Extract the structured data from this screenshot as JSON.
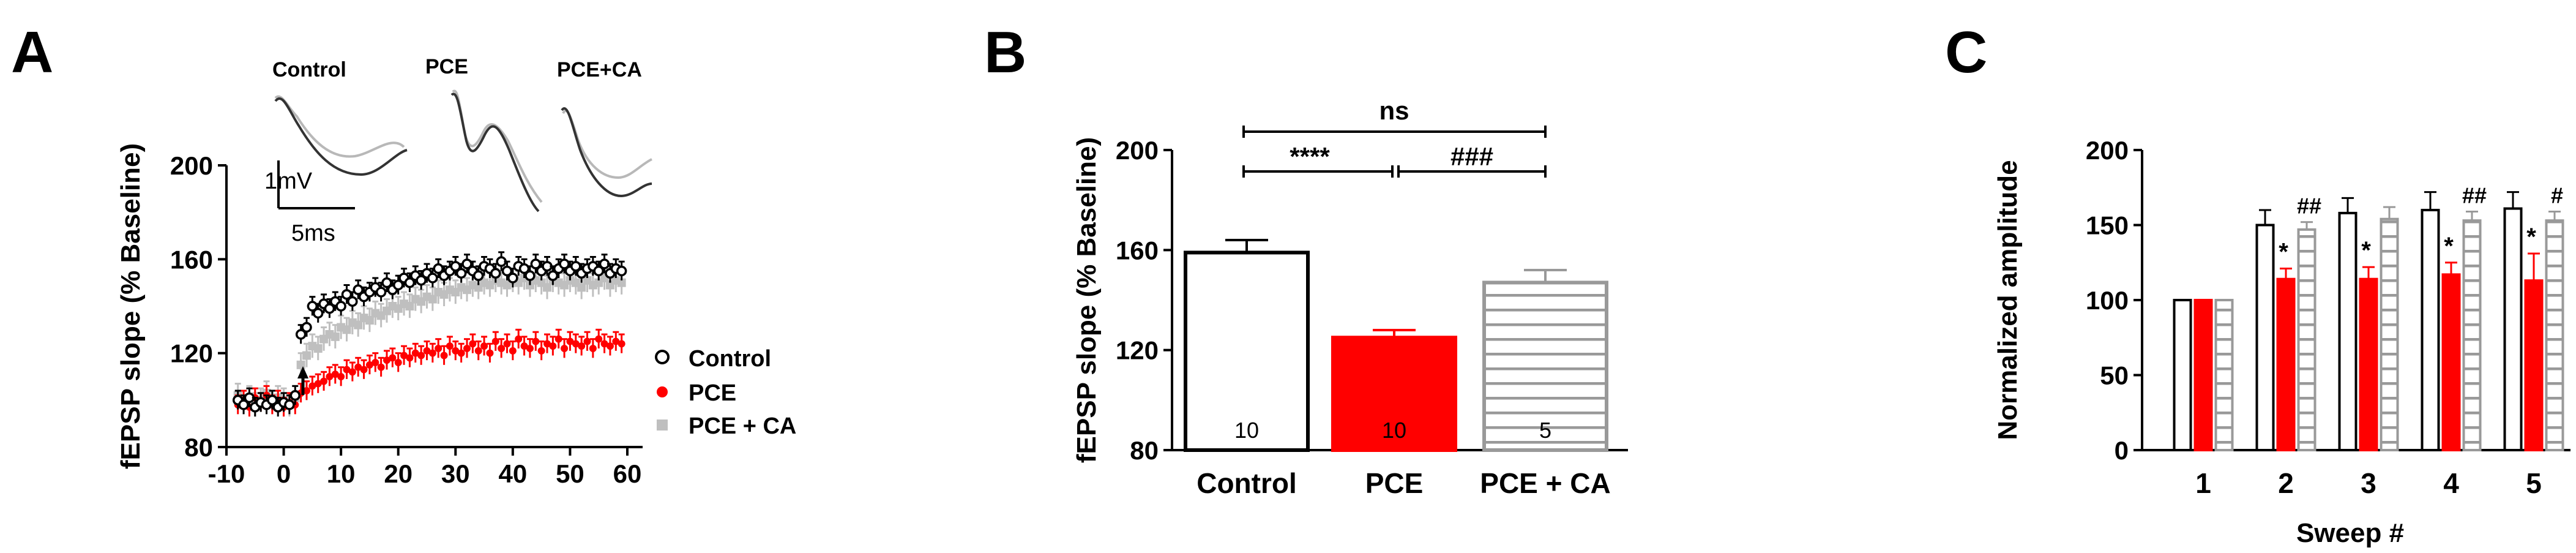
{
  "colors": {
    "control": "#000000",
    "pce": "#ff0000",
    "pce_ca": "#999999",
    "pce_ca_fill": "#bfbfbf",
    "trace_light": "#b8b8b8"
  },
  "chart_data": [
    {
      "panel_label": "A",
      "type": "scatter",
      "xlabel": "",
      "ylabel": "fEPSP slope (% Baseline)",
      "xlim": [
        -10,
        60
      ],
      "ylim": [
        80,
        200
      ],
      "x_ticks": [
        "-10",
        "0",
        "10",
        "20",
        "30",
        "40",
        "50",
        "60"
      ],
      "y_ticks": [
        "80",
        "120",
        "160",
        "200"
      ],
      "insets": {
        "labels": [
          "Control",
          "PCE",
          "PCE+CA"
        ],
        "scale_bar": {
          "voltage": "1mV",
          "time": "5ms"
        }
      },
      "legend": {
        "position": "right",
        "entries": [
          "Control",
          "PCE",
          "PCE + CA"
        ]
      },
      "grid": false,
      "series": [
        {
          "name": "Control",
          "marker": "open-circle",
          "x_start": -8,
          "x_step": 1,
          "values": [
            100,
            98,
            101,
            97,
            99,
            98,
            100,
            97,
            99,
            98,
            102,
            128,
            131,
            140,
            137,
            141,
            139,
            142,
            140,
            145,
            142,
            147,
            144,
            146,
            148,
            146,
            150,
            147,
            149,
            152,
            150,
            153,
            151,
            154,
            152,
            156,
            153,
            155,
            157,
            154,
            158,
            155,
            153,
            157,
            156,
            154,
            159,
            155,
            152,
            157,
            156,
            153,
            158,
            155,
            157,
            153,
            156,
            158,
            155,
            157,
            154,
            156,
            157,
            155,
            158,
            154,
            156,
            155
          ],
          "error": 4
        },
        {
          "name": "PCE",
          "marker": "filled-circle",
          "x_start": -8,
          "x_step": 1,
          "values": [
            98,
            100,
            97,
            101,
            99,
            102,
            98,
            100,
            97,
            99,
            98,
            103,
            104,
            106,
            107,
            108,
            110,
            111,
            110,
            113,
            112,
            114,
            113,
            115,
            116,
            114,
            117,
            118,
            116,
            119,
            118,
            120,
            119,
            121,
            120,
            122,
            119,
            123,
            121,
            120,
            122,
            124,
            121,
            123,
            120,
            125,
            122,
            124,
            121,
            126,
            123,
            122,
            125,
            121,
            124,
            123,
            126,
            122,
            125,
            124,
            123,
            125,
            122,
            126,
            124,
            123,
            125,
            124
          ],
          "error": 4
        },
        {
          "name": "PCE + CA",
          "marker": "square",
          "x_start": -8,
          "x_step": 1,
          "values": [
            102,
            99,
            101,
            98,
            100,
            103,
            99,
            101,
            100,
            98,
            101,
            115,
            119,
            123,
            122,
            126,
            128,
            127,
            131,
            130,
            133,
            132,
            135,
            134,
            137,
            136,
            138,
            140,
            139,
            141,
            140,
            143,
            142,
            144,
            143,
            146,
            145,
            147,
            146,
            148,
            147,
            149,
            148,
            150,
            149,
            151,
            150,
            149,
            151,
            150,
            152,
            149,
            151,
            150,
            148,
            151,
            150,
            149,
            151,
            150,
            148,
            151,
            149,
            150,
            152,
            149,
            151,
            150
          ],
          "error": 5
        }
      ]
    },
    {
      "panel_label": "B",
      "type": "bar",
      "xlabel": "",
      "ylabel": "fEPSP slope (% Baseline)",
      "ylim": [
        80,
        200
      ],
      "y_ticks": [
        "80",
        "120",
        "160",
        "200"
      ],
      "categories": [
        "Control",
        "PCE",
        "PCE + CA"
      ],
      "values": [
        159,
        125,
        147
      ],
      "errors": [
        5,
        3,
        5
      ],
      "n_labels": [
        "10",
        "10",
        "5"
      ],
      "significance": [
        "ns",
        "****",
        "###"
      ],
      "grid": false
    },
    {
      "panel_label": "C",
      "type": "bar",
      "xlabel": "Sweep #",
      "ylabel": "Normalized amplitude",
      "ylim": [
        0,
        200
      ],
      "y_ticks": [
        "0",
        "50",
        "100",
        "150",
        "200"
      ],
      "categories": [
        "1",
        "2",
        "3",
        "4",
        "5"
      ],
      "series": [
        {
          "values": [
            100,
            150,
            158,
            160,
            161
          ],
          "errors": [
            0,
            10,
            10,
            12,
            11
          ]
        },
        {
          "values": [
            100,
            114,
            114,
            117,
            113
          ],
          "errors": [
            0,
            7,
            8,
            8,
            18
          ]
        },
        {
          "values": [
            100,
            147,
            154,
            153,
            153
          ],
          "errors": [
            0,
            5,
            8,
            6,
            6
          ]
        }
      ],
      "markers_pce": [
        "",
        "*",
        "*",
        "*",
        "*"
      ],
      "markers_pce_ca": [
        "",
        "##",
        "",
        "##",
        "#"
      ],
      "grid": false
    }
  ]
}
